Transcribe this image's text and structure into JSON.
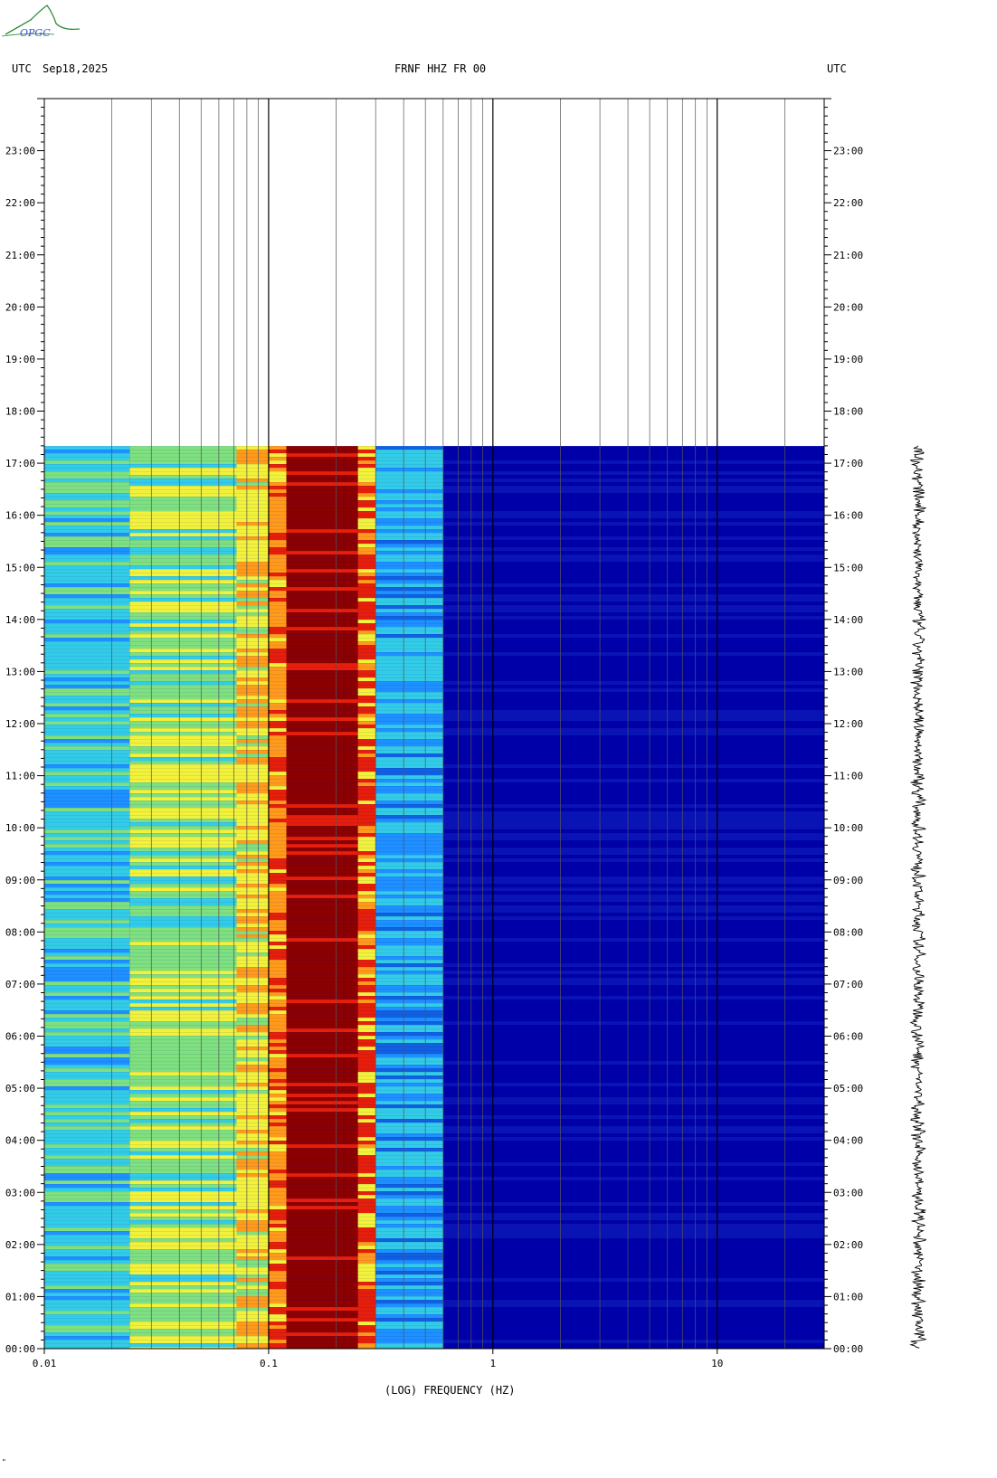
{
  "header": {
    "left_tz": "UTC",
    "date": "Sep18,2025",
    "station": "FRNF HHZ FR 00",
    "right_tz": "UTC"
  },
  "logo": {
    "text": "OPGC",
    "icon": "opgc-logo-icon"
  },
  "corner_mark": "\"",
  "colors": {
    "background": "#0000A8",
    "low": "#1E90FF",
    "cyan": "#33CCE6",
    "green": "#7FE07F",
    "yellow": "#F2F23A",
    "orange": "#FF9A1A",
    "red": "#E61E0A",
    "dark_red": "#8B0000",
    "grid_major": "#000000",
    "grid_minor": "#555555"
  },
  "chart_data": {
    "type": "heatmap",
    "title": "FRNF HHZ FR 00",
    "xlabel": "(LOG) FREQUENCY (HZ)",
    "ylabel": "UTC",
    "x_scale": "log",
    "xlim": [
      0.01,
      30
    ],
    "x_ticks": [
      "0.01",
      "0.1",
      "1",
      "10"
    ],
    "ylim_hours": [
      0,
      24
    ],
    "y_ticks": [
      "00:00",
      "01:00",
      "02:00",
      "03:00",
      "04:00",
      "05:00",
      "06:00",
      "07:00",
      "08:00",
      "09:00",
      "10:00",
      "11:00",
      "12:00",
      "13:00",
      "14:00",
      "15:00",
      "16:00",
      "17:00",
      "18:00",
      "19:00",
      "20:00",
      "21:00",
      "22:00",
      "23:00"
    ],
    "data_end_hour": 17.33,
    "microseism_band_hz": [
      0.12,
      0.28
    ],
    "spectral_bands": [
      {
        "f_min": 0.01,
        "f_max": 0.024,
        "level": "cyan-green"
      },
      {
        "f_min": 0.024,
        "f_max": 0.072,
        "level": "green-yellow"
      },
      {
        "f_min": 0.072,
        "f_max": 0.1,
        "level": "yellow-orange"
      },
      {
        "f_min": 0.1,
        "f_max": 0.12,
        "level": "orange-red"
      },
      {
        "f_min": 0.12,
        "f_max": 0.25,
        "level": "dark-red"
      },
      {
        "f_min": 0.25,
        "f_max": 0.3,
        "level": "red-yellow"
      },
      {
        "f_min": 0.3,
        "f_max": 0.6,
        "level": "cyan-blue"
      },
      {
        "f_min": 0.6,
        "f_max": 30,
        "level": "dark-blue"
      }
    ],
    "seismogram": {
      "start_hour": 0,
      "end_hour": 17.33
    }
  }
}
